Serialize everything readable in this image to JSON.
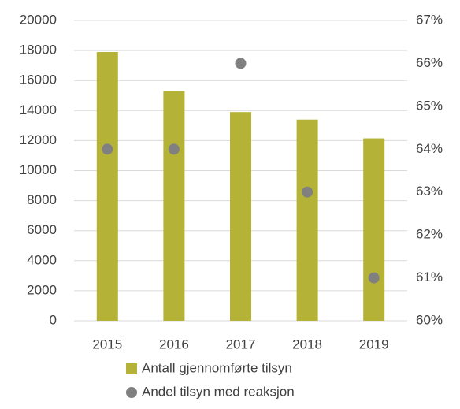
{
  "chart_data": {
    "type": "bar",
    "categories": [
      "2015",
      "2016",
      "2017",
      "2018",
      "2019"
    ],
    "series": [
      {
        "name": "Antall gjennomførte tilsyn",
        "type": "bar",
        "color": "#b5b337",
        "values": [
          17900,
          15300,
          13900,
          13400,
          12150
        ]
      },
      {
        "name": "Andel tilsyn med reaksjon",
        "type": "scatter",
        "axis": "y2",
        "color": "#808080",
        "values": [
          64,
          64,
          66,
          63,
          61
        ]
      }
    ],
    "ylim": [
      0,
      20000
    ],
    "yticks": [
      0,
      2000,
      4000,
      6000,
      8000,
      10000,
      12000,
      14000,
      16000,
      18000,
      20000
    ],
    "y2lim": [
      60,
      67
    ],
    "y2ticks": [
      {
        "value": 60,
        "label": "60%"
      },
      {
        "value": 61,
        "label": "61%"
      },
      {
        "value": 62,
        "label": "62%"
      },
      {
        "value": 63,
        "label": "63%"
      },
      {
        "value": 64,
        "label": "64%"
      },
      {
        "value": 65,
        "label": "65%"
      },
      {
        "value": 66,
        "label": "66%"
      },
      {
        "value": 67,
        "label": "67%"
      }
    ],
    "grid": true,
    "legend": "bottom"
  }
}
